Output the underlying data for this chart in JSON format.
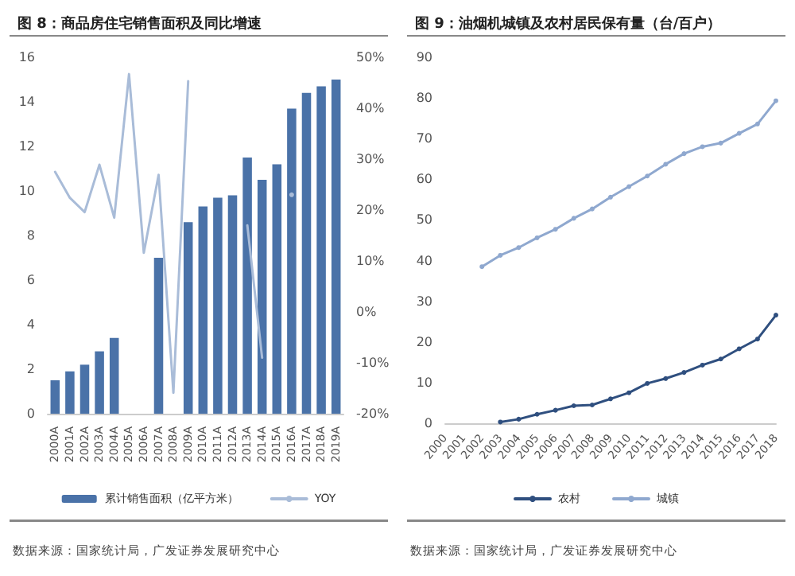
{
  "chart_data": [
    {
      "type": "bar",
      "title": "图 8：商品房住宅销售面积及同比增速",
      "categories": [
        "2000A",
        "2001A",
        "2002A",
        "2003A",
        "2004A",
        "2005A",
        "2006A",
        "2007A",
        "2008A",
        "2009A",
        "2010A",
        "2011A",
        "2012A",
        "2013A",
        "2014A",
        "2015A",
        "2016A",
        "2017A",
        "2018A",
        "2019A"
      ],
      "series": [
        {
          "name": "累计销售面积（亿平方米）",
          "type": "bar",
          "color": "#4a72a8",
          "values": [
            1.5,
            1.9,
            2.2,
            2.8,
            3.4,
            null,
            null,
            7.0,
            null,
            8.6,
            9.3,
            9.7,
            9.8,
            11.5,
            10.5,
            11.2,
            13.7,
            14.4,
            14.7,
            15.0
          ]
        },
        {
          "name": "YOY",
          "type": "line",
          "axis": "y2",
          "color": "#a9bcd8",
          "values": [
            27.5,
            22.4,
            19.6,
            28.9,
            18.5,
            46.7,
            11.6,
            26.9,
            -15.9,
            45.3,
            null,
            null,
            null,
            17,
            -9,
            null,
            23,
            null,
            null,
            null
          ]
        }
      ],
      "ylim": [
        0,
        16
      ],
      "yticks": [
        0,
        2,
        4,
        6,
        8,
        10,
        12,
        14,
        16
      ],
      "y2lim": [
        -20,
        50
      ],
      "y2ticks": [
        {
          "value": -20,
          "label": "-20%"
        },
        {
          "value": -10,
          "label": "-10%"
        },
        {
          "value": 0,
          "label": "0%"
        },
        {
          "value": 10,
          "label": "10%"
        },
        {
          "value": 20,
          "label": "20%"
        },
        {
          "value": 30,
          "label": "30%"
        },
        {
          "value": 40,
          "label": "40%"
        },
        {
          "value": 50,
          "label": "50%"
        }
      ],
      "grid": false,
      "legend": "bottom",
      "marker": "none",
      "annotations": [
        "数据来源：国家统计局，广发证券发展研究中心"
      ]
    },
    {
      "type": "line",
      "title": "图 9：油烟机城镇及农村居民保有量（台/百户）",
      "categories": [
        "2000",
        "2001",
        "2002",
        "2003",
        "2004",
        "2005",
        "2006",
        "2007",
        "2008",
        "2009",
        "2010",
        "2011",
        "2012",
        "2013",
        "2014",
        "2015",
        "2016",
        "2017",
        "2018"
      ],
      "series": [
        {
          "name": "农村",
          "color": "#2f4f7f",
          "values": [
            null,
            null,
            null,
            0.3,
            1.0,
            2.2,
            3.2,
            4.3,
            4.5,
            6.0,
            7.5,
            9.8,
            11.0,
            12.5,
            14.3,
            15.8,
            18.3,
            20.7,
            26.6
          ]
        },
        {
          "name": "城镇",
          "color": "#8fa8cf",
          "values": [
            null,
            null,
            38.5,
            41.3,
            43.2,
            45.6,
            47.7,
            50.4,
            52.7,
            55.6,
            58.2,
            60.8,
            63.7,
            66.3,
            68.0,
            68.9,
            71.3,
            73.6,
            79.3
          ]
        }
      ],
      "ylim": [
        0,
        90
      ],
      "yticks": [
        0,
        10,
        20,
        30,
        40,
        50,
        60,
        70,
        80,
        90
      ],
      "grid": false,
      "legend": "bottom",
      "marker": "circle",
      "annotations": [
        "数据来源：国家统计局，广发证券发展研究中心"
      ]
    }
  ]
}
